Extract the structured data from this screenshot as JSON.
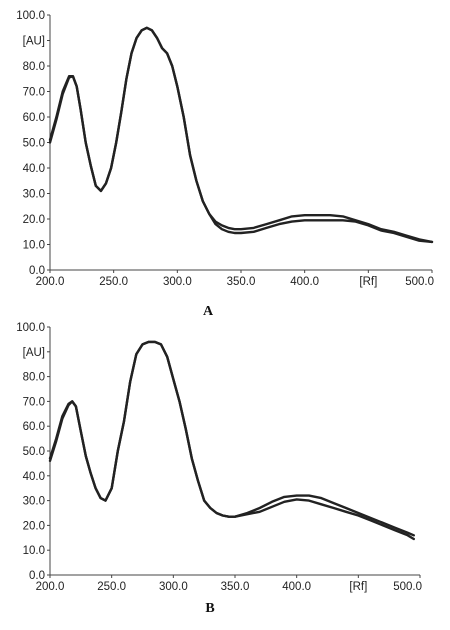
{
  "chart_data": [
    {
      "type": "line",
      "panel_label": "A",
      "xlabel": "[Rf]",
      "ylabel": "[AU]",
      "xlim": [
        200,
        500
      ],
      "ylim": [
        0,
        100
      ],
      "x_ticks": [
        "200.0",
        "250.0",
        "300.0",
        "350.0",
        "400.0",
        "[Rf]",
        "500.0"
      ],
      "y_ticks": [
        "0.0",
        "10.0",
        "20.0",
        "30.0",
        "40.0",
        "50.0",
        "60.0",
        "70.0",
        "80.0",
        "[AU]",
        "100.0"
      ],
      "grid": false,
      "series": [
        {
          "x": [
            200,
            205,
            210,
            215,
            218,
            221,
            224,
            228,
            232,
            236,
            240,
            244,
            248,
            252,
            256,
            260,
            264,
            268,
            272,
            276,
            280,
            284,
            288,
            292,
            296,
            300,
            305,
            310,
            315,
            320,
            325,
            330,
            335,
            340,
            345,
            350,
            360,
            370,
            380,
            390,
            400,
            410,
            420,
            430,
            440,
            450,
            460,
            470,
            480,
            490,
            500
          ],
          "values": [
            51,
            60,
            70,
            76,
            76,
            72,
            63,
            50,
            41,
            33,
            31,
            34,
            40,
            50,
            62,
            75,
            85,
            91,
            94,
            95,
            94,
            91,
            87,
            85,
            80,
            72,
            60,
            45,
            35,
            27,
            22,
            19,
            17.5,
            16.5,
            16,
            16,
            16.5,
            18,
            19.5,
            21,
            21.5,
            21.5,
            21.5,
            21,
            19.5,
            18,
            16,
            15,
            13.5,
            12,
            11
          ]
        },
        {
          "x": [
            200,
            205,
            210,
            215,
            218,
            221,
            224,
            228,
            232,
            236,
            240,
            244,
            248,
            252,
            256,
            260,
            264,
            268,
            272,
            276,
            280,
            284,
            288,
            292,
            296,
            300,
            305,
            310,
            315,
            320,
            325,
            330,
            335,
            340,
            345,
            350,
            360,
            370,
            380,
            390,
            400,
            410,
            420,
            430,
            440,
            450,
            460,
            470,
            480,
            490,
            500
          ],
          "values": [
            50,
            59,
            69,
            75.5,
            76,
            72,
            63,
            50,
            41,
            33,
            31,
            34,
            40,
            50,
            62,
            75,
            85,
            91,
            94,
            95,
            94,
            91,
            87,
            85,
            80,
            72,
            60,
            45,
            35,
            27,
            22,
            18,
            16,
            15,
            14.5,
            14.5,
            15,
            16.5,
            18,
            19,
            19.5,
            19.5,
            19.5,
            19.5,
            19,
            17.5,
            15.5,
            14.5,
            13,
            11.5,
            11
          ]
        }
      ]
    },
    {
      "type": "line",
      "panel_label": "B",
      "xlabel": "[Rf]",
      "ylabel": "[AU]",
      "xlim": [
        200,
        500
      ],
      "ylim": [
        0,
        100
      ],
      "x_ticks": [
        "200.0",
        "250.0",
        "300.0",
        "350.0",
        "400.0",
        "[Rf]",
        "500.0"
      ],
      "y_ticks": [
        "0.0",
        "10.0",
        "20.0",
        "30.0",
        "40.0",
        "50.0",
        "60.0",
        "70.0",
        "80.0",
        "[AU]",
        "100.0"
      ],
      "grid": false,
      "series": [
        {
          "x": [
            200,
            205,
            210,
            215,
            218,
            221,
            225,
            229,
            233,
            237,
            241,
            245,
            250,
            255,
            260,
            265,
            270,
            275,
            280,
            285,
            290,
            295,
            300,
            305,
            310,
            315,
            320,
            325,
            330,
            335,
            340,
            345,
            350,
            360,
            370,
            380,
            390,
            400,
            410,
            420,
            430,
            440,
            450,
            460,
            470,
            480,
            490,
            495
          ],
          "values": [
            47,
            55,
            64,
            69,
            70,
            68,
            58,
            48,
            41,
            35,
            31,
            30,
            35,
            50,
            62,
            78,
            89,
            93,
            94,
            94,
            93,
            88,
            79,
            70,
            59,
            47,
            38,
            30,
            27,
            25,
            24,
            23.5,
            23.5,
            25,
            27,
            29.5,
            31.5,
            32,
            32,
            31,
            29,
            27,
            25,
            23,
            21,
            19,
            17,
            16
          ]
        },
        {
          "x": [
            200,
            205,
            210,
            215,
            218,
            221,
            225,
            229,
            233,
            237,
            241,
            245,
            250,
            255,
            260,
            265,
            270,
            275,
            280,
            285,
            290,
            295,
            300,
            305,
            310,
            315,
            320,
            325,
            330,
            335,
            340,
            345,
            350,
            360,
            370,
            380,
            390,
            400,
            410,
            420,
            430,
            440,
            450,
            460,
            470,
            480,
            490,
            495
          ],
          "values": [
            46,
            54,
            63,
            68.5,
            70,
            68,
            58,
            48,
            41,
            35,
            31,
            30,
            35,
            50,
            62,
            78,
            89,
            93,
            94,
            94,
            93,
            88,
            79,
            70,
            59,
            47,
            38,
            30,
            27,
            25,
            24,
            23.5,
            23.5,
            24.5,
            25.5,
            27.5,
            29.5,
            30.5,
            30,
            28.5,
            27,
            25.5,
            24,
            22,
            20,
            18,
            16,
            14.5
          ]
        }
      ]
    }
  ]
}
